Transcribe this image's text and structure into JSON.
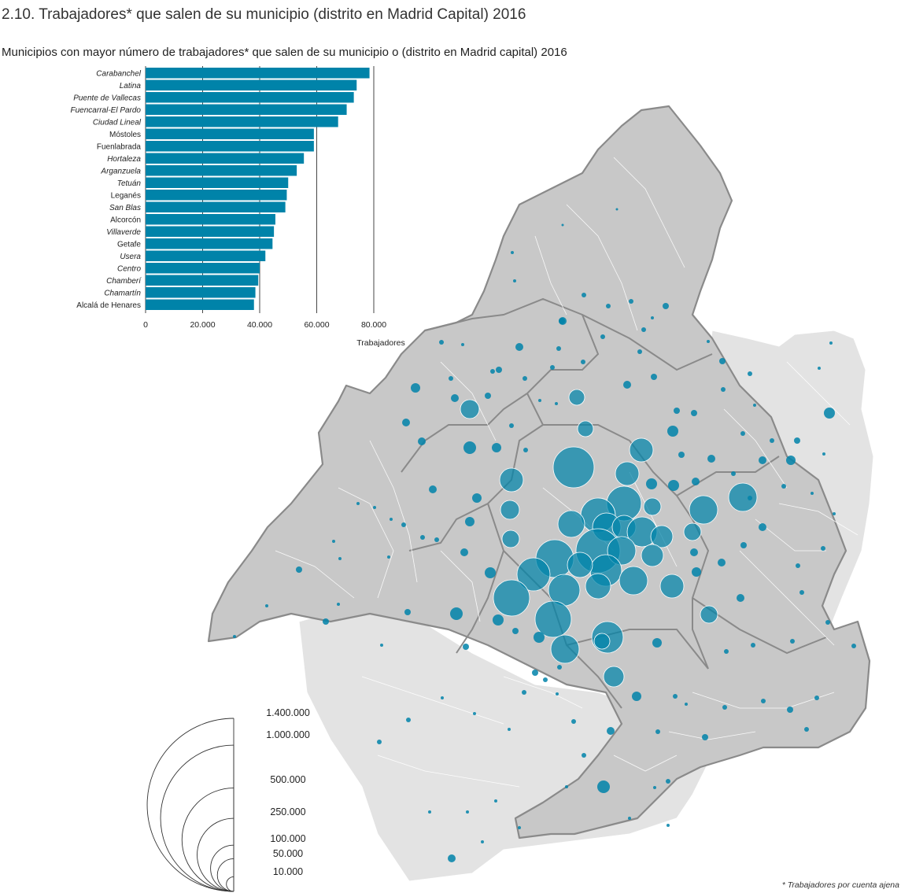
{
  "page_title": "2.10. Trabajadores* que salen de su municipio (distrito en Madrid Capital) 2016",
  "footnote": "* Trabajadores por cuenta ajena",
  "chart_data": {
    "type": "bar",
    "orientation": "horizontal",
    "title": "Municipios con mayor número de trabajadores* que salen de su municipio o (distrito en Madrid capital) 2016",
    "xlabel": "Trabajadores",
    "xlim": [
      0,
      80000
    ],
    "xticks": [
      0,
      20000,
      40000,
      60000,
      80000
    ],
    "xtick_labels": [
      "0",
      "20.000",
      "40.000",
      "60.000",
      "80.000"
    ],
    "grid": true,
    "color": "#0083A9",
    "categories": [
      {
        "name": "Carabanchel",
        "italic": true
      },
      {
        "name": "Latina",
        "italic": true
      },
      {
        "name": "Puente de Vallecas",
        "italic": true
      },
      {
        "name": "Fuencarral-El Pardo",
        "italic": true
      },
      {
        "name": "Ciudad Lineal",
        "italic": true
      },
      {
        "name": "Móstoles",
        "italic": false
      },
      {
        "name": "Fuenlabrada",
        "italic": false
      },
      {
        "name": "Hortaleza",
        "italic": true
      },
      {
        "name": "Arganzuela",
        "italic": true
      },
      {
        "name": "Tetuán",
        "italic": true
      },
      {
        "name": "Leganés",
        "italic": false
      },
      {
        "name": "San Blas",
        "italic": true
      },
      {
        "name": "Alcorcón",
        "italic": false
      },
      {
        "name": "Villaverde",
        "italic": true
      },
      {
        "name": "Getafe",
        "italic": false
      },
      {
        "name": "Usera",
        "italic": true
      },
      {
        "name": "Centro",
        "italic": true
      },
      {
        "name": "Chamberí",
        "italic": true
      },
      {
        "name": "Chamartín",
        "italic": true
      },
      {
        "name": "Alcalá de Henares",
        "italic": false
      }
    ],
    "values": [
      78500,
      74000,
      73000,
      70500,
      67500,
      59000,
      59000,
      55500,
      53000,
      50000,
      49500,
      49000,
      45500,
      45000,
      44500,
      42000,
      40000,
      39500,
      38500,
      38000
    ]
  },
  "legend": {
    "values": [
      1400000,
      1000000,
      500000,
      250000,
      100000,
      50000,
      10000
    ],
    "labels": [
      "1.400.000",
      "1.000.000",
      "500.000",
      "250.000",
      "100.000",
      "50.000",
      "10.000"
    ]
  },
  "map": {
    "region_color": "#c8c8c8",
    "outer_color": "#e3e3e3",
    "border_color": "#8a8a8a",
    "bubble_color": "#0083A9"
  }
}
